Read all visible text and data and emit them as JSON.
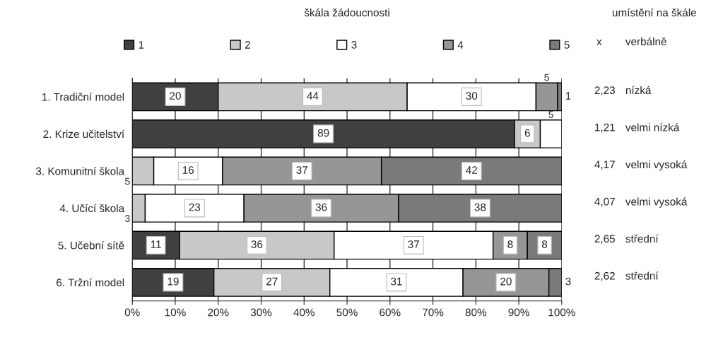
{
  "chart_data": {
    "type": "bar",
    "orientation": "horizontal",
    "stacked": true,
    "categories": [
      "1. Tradiční model",
      "2. Krize učitelství",
      "3. Komunitní škola",
      "4. Učící škola",
      "5. Učební sítě",
      "6. Tržní model"
    ],
    "series": [
      {
        "name": "1",
        "color": "#404040",
        "values": [
          20,
          89,
          0,
          0,
          11,
          19
        ],
        "value_labels": [
          "20",
          "89",
          null,
          null,
          "11",
          "19"
        ]
      },
      {
        "name": "2",
        "color": "#c8c8c8",
        "values": [
          44,
          6,
          5,
          3,
          36,
          27
        ],
        "value_labels": [
          "44",
          "6",
          "5",
          "3",
          "36",
          "27"
        ]
      },
      {
        "name": "3",
        "color": "#ffffff",
        "values": [
          30,
          5,
          16,
          23,
          37,
          31
        ],
        "value_labels": [
          "30",
          "5",
          "16",
          "23",
          "37",
          "31"
        ]
      },
      {
        "name": "4",
        "color": "#969696",
        "values": [
          5,
          0,
          37,
          36,
          8,
          20
        ],
        "value_labels": [
          "5",
          null,
          "37",
          "36",
          "8",
          "20"
        ]
      },
      {
        "name": "5",
        "color": "#7a7a7a",
        "values": [
          1,
          0,
          42,
          38,
          8,
          3
        ],
        "value_labels": [
          "1",
          null,
          "42",
          "38",
          "8",
          "3"
        ]
      }
    ],
    "xlim": [
      0,
      100
    ],
    "xticks": [
      {
        "value": 0,
        "label": "0%"
      },
      {
        "value": 10,
        "label": "10%"
      },
      {
        "value": 20,
        "label": "20%"
      },
      {
        "value": 30,
        "label": "30%"
      },
      {
        "value": 40,
        "label": "40%"
      },
      {
        "value": 50,
        "label": "50%"
      },
      {
        "value": 60,
        "label": "60%"
      },
      {
        "value": 70,
        "label": "70%"
      },
      {
        "value": 80,
        "label": "80%"
      },
      {
        "value": 90,
        "label": "90%"
      },
      {
        "value": 100,
        "label": "100%"
      }
    ],
    "legend_title": "škála žádoucnosti",
    "legend": "top",
    "grid": "x",
    "annotations": [
      "umístění na škále",
      "x",
      "verbálně",
      "2,23",
      "nízká",
      "1,21",
      "velmi nízká",
      "4,17",
      "velmi vysoká",
      "4,07",
      "velmi vysoká",
      "2,65",
      "střední",
      "2,62",
      "střední"
    ]
  }
}
